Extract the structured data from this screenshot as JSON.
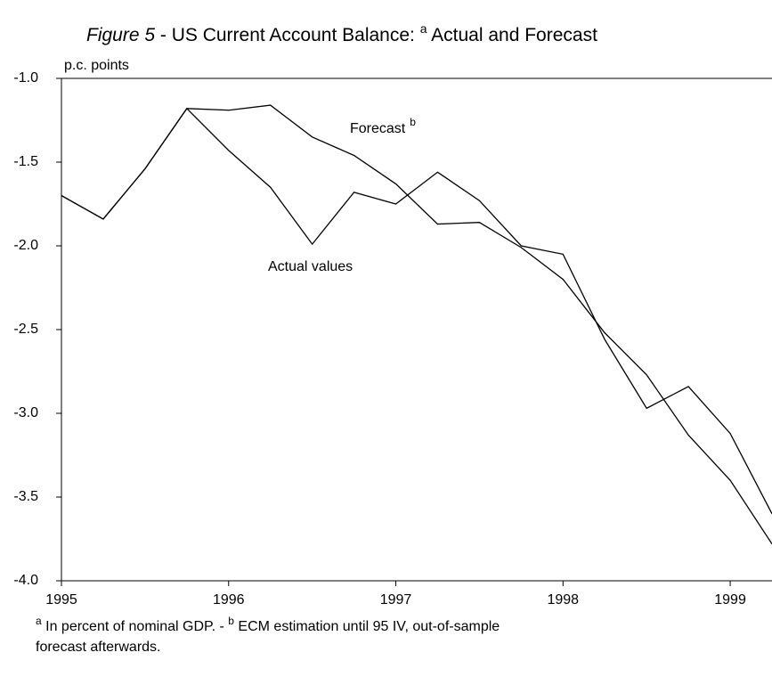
{
  "chart_data": {
    "type": "line",
    "title_parts": [
      "Figure 5",
      " - US Current Account Balance:  ",
      "a",
      " Actual and Forecast"
    ],
    "ylabel": "p.c. points",
    "x": [
      1995,
      1995.25,
      1995.5,
      1995.75,
      1996,
      1996.25,
      1996.5,
      1996.75,
      1997,
      1997.25,
      1997.5,
      1997.75,
      1998,
      1998.25,
      1998.5,
      1998.75,
      1999,
      1999.25
    ],
    "series": [
      {
        "name": "Actual values",
        "color": "#000000",
        "values": [
          -1.7,
          -1.84,
          -1.54,
          -1.18,
          -1.43,
          -1.65,
          -1.99,
          -1.68,
          -1.75,
          -1.56,
          -1.73,
          -2.0,
          -2.05,
          -2.56,
          -2.97,
          -2.84,
          -3.12,
          -3.6
        ]
      },
      {
        "name": "Forecast",
        "color": "#000000",
        "values": [
          -1.7,
          -1.84,
          -1.54,
          -1.18,
          -1.19,
          -1.16,
          -1.35,
          -1.46,
          -1.63,
          -1.87,
          -1.86,
          -2.01,
          -2.2,
          -2.52,
          -2.77,
          -3.13,
          -3.4,
          -3.78
        ]
      }
    ],
    "annotations": [
      {
        "text": "Actual values"
      },
      {
        "text": "Forecast",
        "sup": "b"
      }
    ],
    "xlim": [
      1995,
      1999.25
    ],
    "xticks": [
      1995,
      1996,
      1997,
      1998,
      1999
    ],
    "ylim": [
      -4.0,
      -1.0
    ],
    "yticks": [
      {
        "value": -4.0,
        "label": "-4.0"
      },
      {
        "value": -3.5,
        "label": "-3.5"
      },
      {
        "value": -3.0,
        "label": "-3.0"
      },
      {
        "value": -2.5,
        "label": "-2.5"
      },
      {
        "value": -2.0,
        "label": "-2.0"
      },
      {
        "value": -1.5,
        "label": "-1.5"
      },
      {
        "value": -1.0,
        "label": "-1.0"
      }
    ],
    "footnote_parts": [
      "a",
      " In percent of nominal GDP. -   ",
      "b",
      " ECM estimation until 95 IV, out-of-sample",
      "forecast afterwards."
    ]
  }
}
